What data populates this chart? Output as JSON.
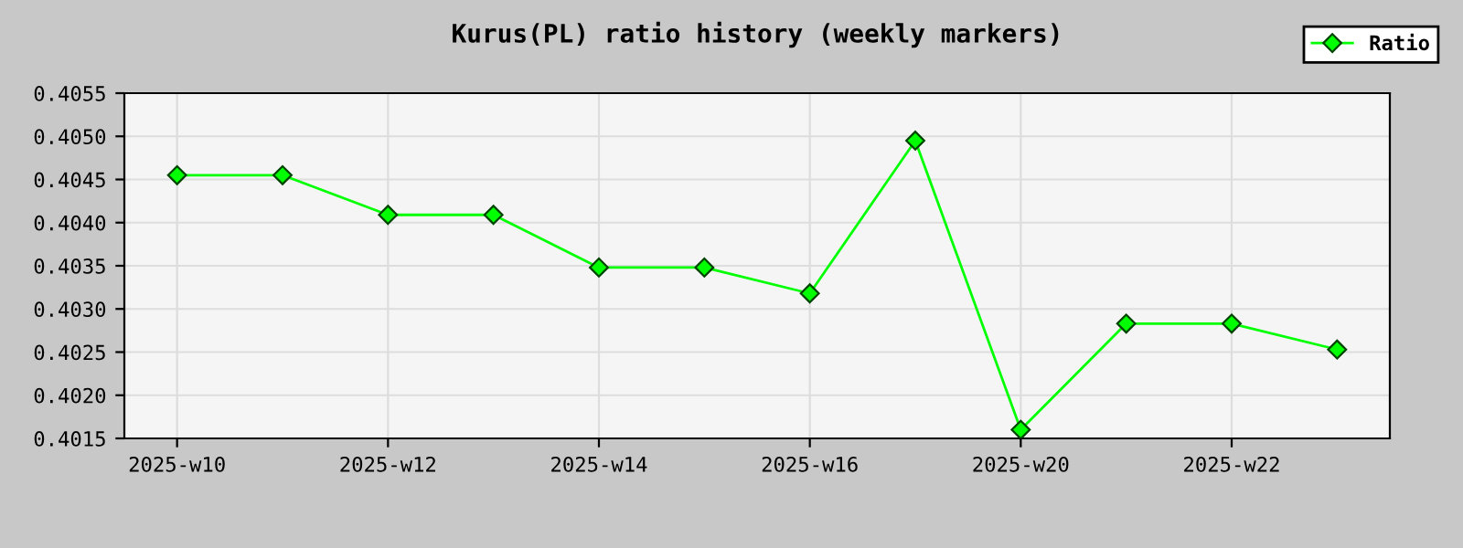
{
  "chart_data": {
    "type": "line",
    "title": "Kurus(PL) ratio history (weekly markers)",
    "categories": [
      "2025-w10",
      null,
      "2025-w12",
      null,
      "2025-w14",
      null,
      "2025-w16",
      null,
      "2025-w20",
      null,
      "2025-w22",
      null
    ],
    "series": [
      {
        "name": "Ratio",
        "color": "#00ff00",
        "values": [
          0.40455,
          0.40455,
          0.40409,
          0.40409,
          0.40348,
          0.40348,
          0.40318,
          0.40495,
          0.4016,
          0.40283,
          0.40283,
          0.40253
        ]
      }
    ],
    "ylim": [
      0.4015,
      0.4055
    ],
    "yticks": [
      {
        "value": 0.4015,
        "label": "0.4015"
      },
      {
        "value": 0.402,
        "label": "0.4020"
      },
      {
        "value": 0.4025,
        "label": "0.4025"
      },
      {
        "value": 0.403,
        "label": "0.4030"
      },
      {
        "value": 0.4035,
        "label": "0.4035"
      },
      {
        "value": 0.404,
        "label": "0.4040"
      },
      {
        "value": 0.4045,
        "label": "0.4045"
      },
      {
        "value": 0.405,
        "label": "0.4050"
      },
      {
        "value": 0.4055,
        "label": "0.4055"
      }
    ],
    "grid": true,
    "legend": "top right",
    "marker": "diamond",
    "line_style": "solid"
  }
}
